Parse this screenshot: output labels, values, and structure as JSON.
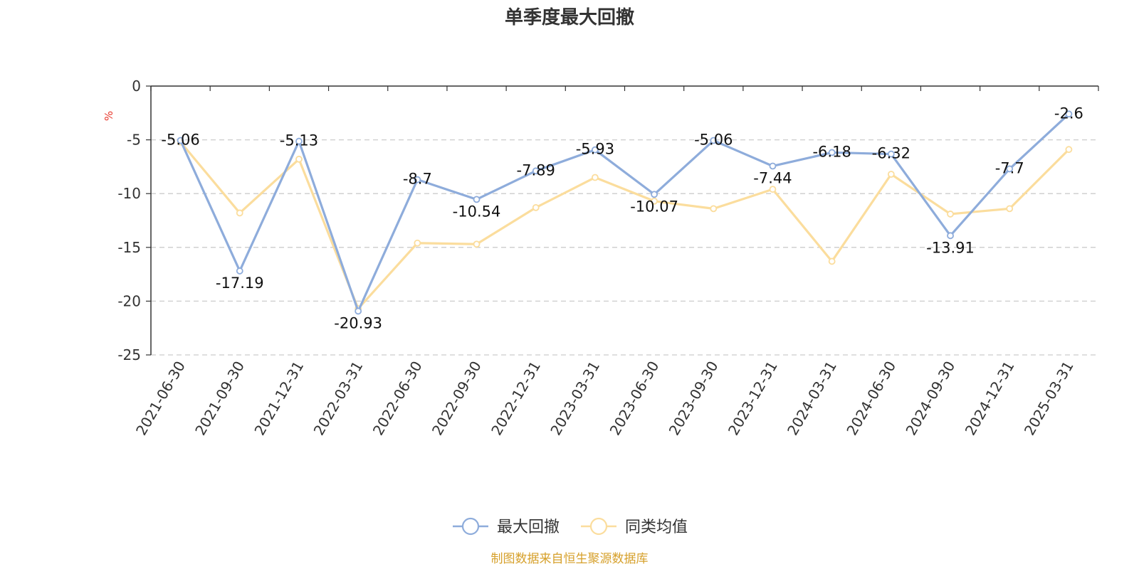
{
  "chart_data": {
    "type": "line",
    "title": "单季度最大回撤",
    "ylabel": "%",
    "ylim": [
      -25,
      0
    ],
    "y_ticks": [
      0,
      -5,
      -10,
      -15,
      -20,
      -25
    ],
    "grid": true,
    "legend_position": "bottom-center",
    "categories": [
      "2021-06-30",
      "2021-09-30",
      "2021-12-31",
      "2022-03-31",
      "2022-06-30",
      "2022-09-30",
      "2022-12-31",
      "2023-03-31",
      "2023-06-30",
      "2023-09-30",
      "2023-12-31",
      "2024-03-31",
      "2024-06-30",
      "2024-09-30",
      "2024-12-31",
      "2025-03-31"
    ],
    "series": [
      {
        "name": "最大回撤",
        "color": "#8eacdb",
        "show_labels": true,
        "values": [
          -5.06,
          -17.19,
          -5.13,
          -20.93,
          -8.7,
          -10.54,
          -7.89,
          -5.93,
          -10.07,
          -5.06,
          -7.44,
          -6.18,
          -6.32,
          -13.91,
          -7.7,
          -2.6
        ]
      },
      {
        "name": "同类均值",
        "color": "#fbdd9d",
        "show_labels": false,
        "values": [
          -5.2,
          -11.8,
          -6.8,
          -20.7,
          -14.6,
          -14.7,
          -11.3,
          -8.5,
          -10.7,
          -11.4,
          -9.6,
          -16.3,
          -8.2,
          -11.9,
          -11.4,
          -5.9
        ]
      }
    ]
  },
  "footer": {
    "source": "制图数据来自恒生聚源数据库"
  },
  "colors": {
    "unit_label": "#e8372b",
    "source_label": "#d6a02b"
  }
}
